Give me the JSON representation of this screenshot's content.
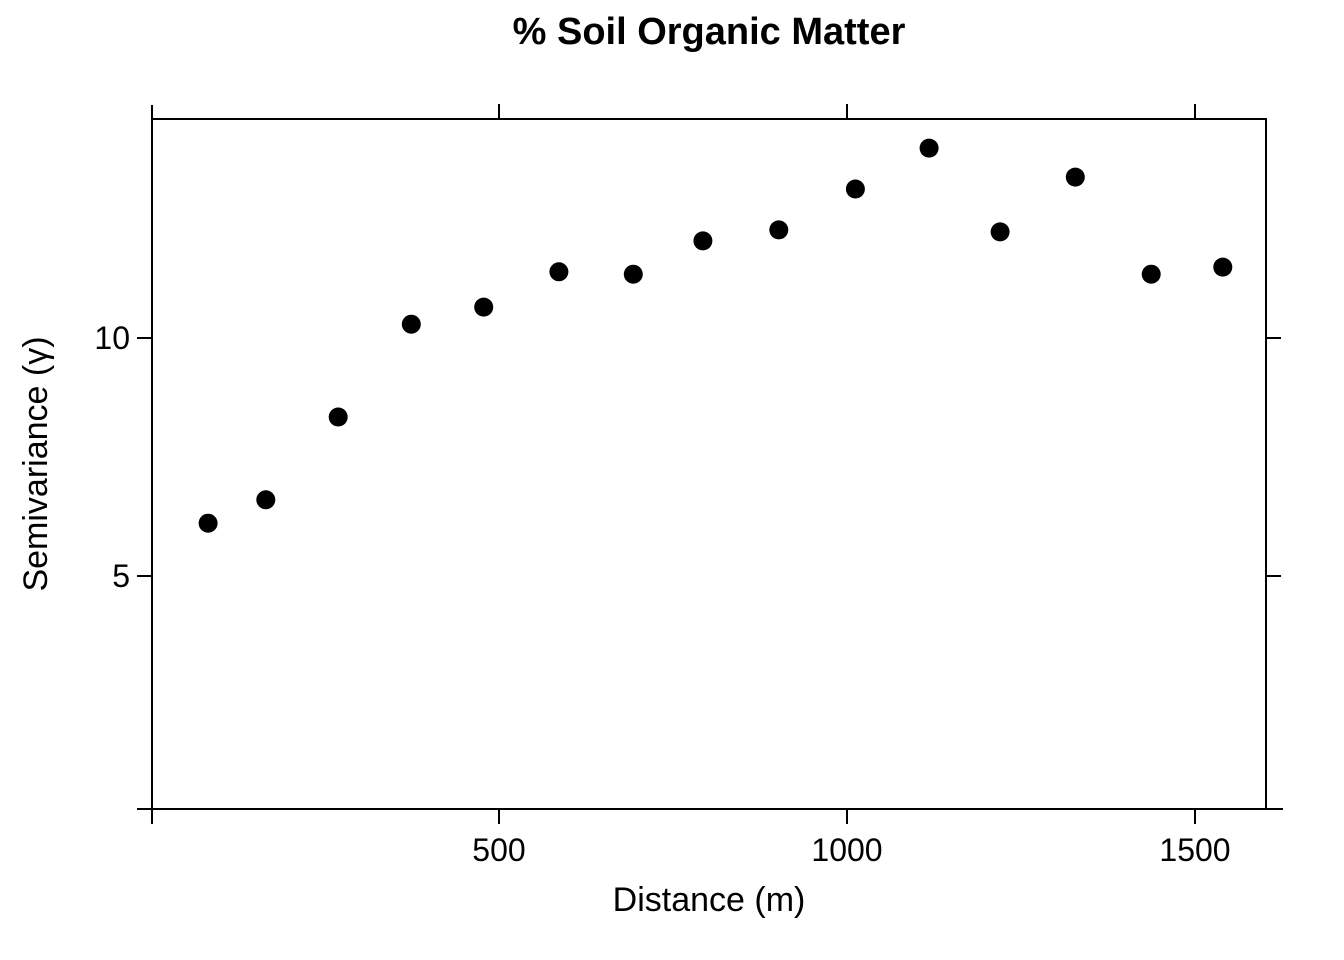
{
  "figure": {
    "title": "% Soil Organic Matter",
    "xlabel": "Distance (m)",
    "ylabel": "Semivariance (γ)"
  },
  "chart_data": {
    "type": "scatter",
    "title": "% Soil Organic Matter",
    "xlabel": "Distance (m)",
    "ylabel": "Semivariance (γ)",
    "x": [
      82,
      165,
      269,
      374,
      478,
      586,
      693,
      793,
      902,
      1012,
      1118,
      1220,
      1328,
      1437,
      1540
    ],
    "y": [
      6.11,
      6.6,
      8.34,
      10.29,
      10.65,
      11.39,
      11.34,
      12.04,
      12.27,
      13.13,
      13.99,
      12.23,
      13.38,
      11.34,
      11.49
    ],
    "xlim": [
      0,
      1600
    ],
    "ylim": [
      0,
      14.6
    ],
    "xticks": {
      "values": [
        500,
        1000,
        1500
      ],
      "labels": [
        "500",
        "1000",
        "1500"
      ]
    },
    "yticks": {
      "values": [
        5,
        10
      ],
      "labels": [
        "5",
        "10"
      ]
    },
    "grid": false,
    "legend_position": "none",
    "marker": {
      "shape": "circle",
      "color": "#000000",
      "radius_px": 9.5
    },
    "frame_color": "#000000",
    "background_color": "#ffffff"
  }
}
